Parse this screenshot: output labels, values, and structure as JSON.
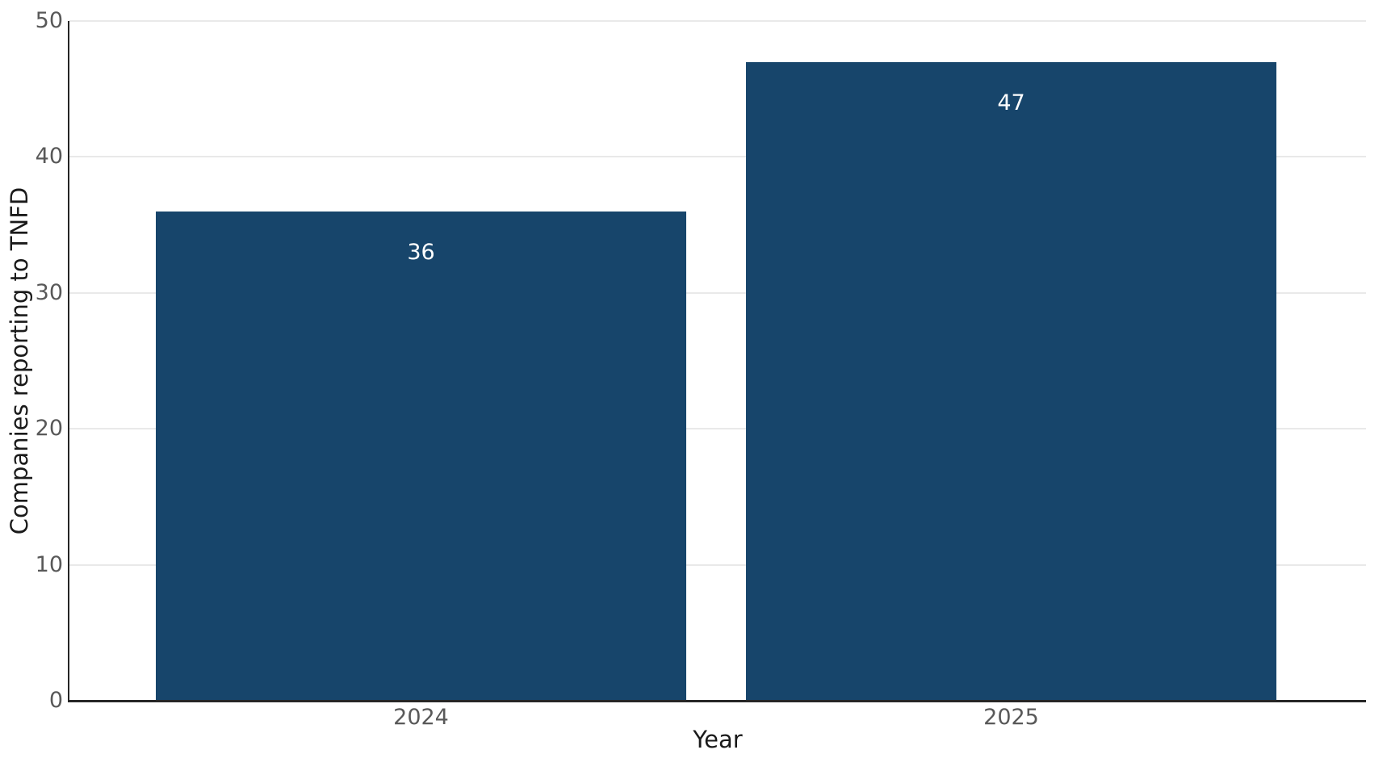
{
  "chart_data": {
    "type": "bar",
    "categories": [
      "2024",
      "2025"
    ],
    "values": [
      36,
      47
    ],
    "value_labels": [
      "36",
      "47"
    ],
    "title": "",
    "xlabel": "Year",
    "ylabel": "Companies reporting to TNFD",
    "ylim": [
      0,
      50
    ],
    "yticks": [
      0,
      10,
      20,
      30,
      40,
      50
    ],
    "grid": "horizontal",
    "legend": null,
    "colors": {
      "bar": "#17456b",
      "value_label": "#ffffff",
      "tick_label": "#595959",
      "axis_line": "#262626",
      "axis_title": "#1a1a1a",
      "gridline": "#e9e9e9",
      "background": "#ffffff"
    }
  }
}
